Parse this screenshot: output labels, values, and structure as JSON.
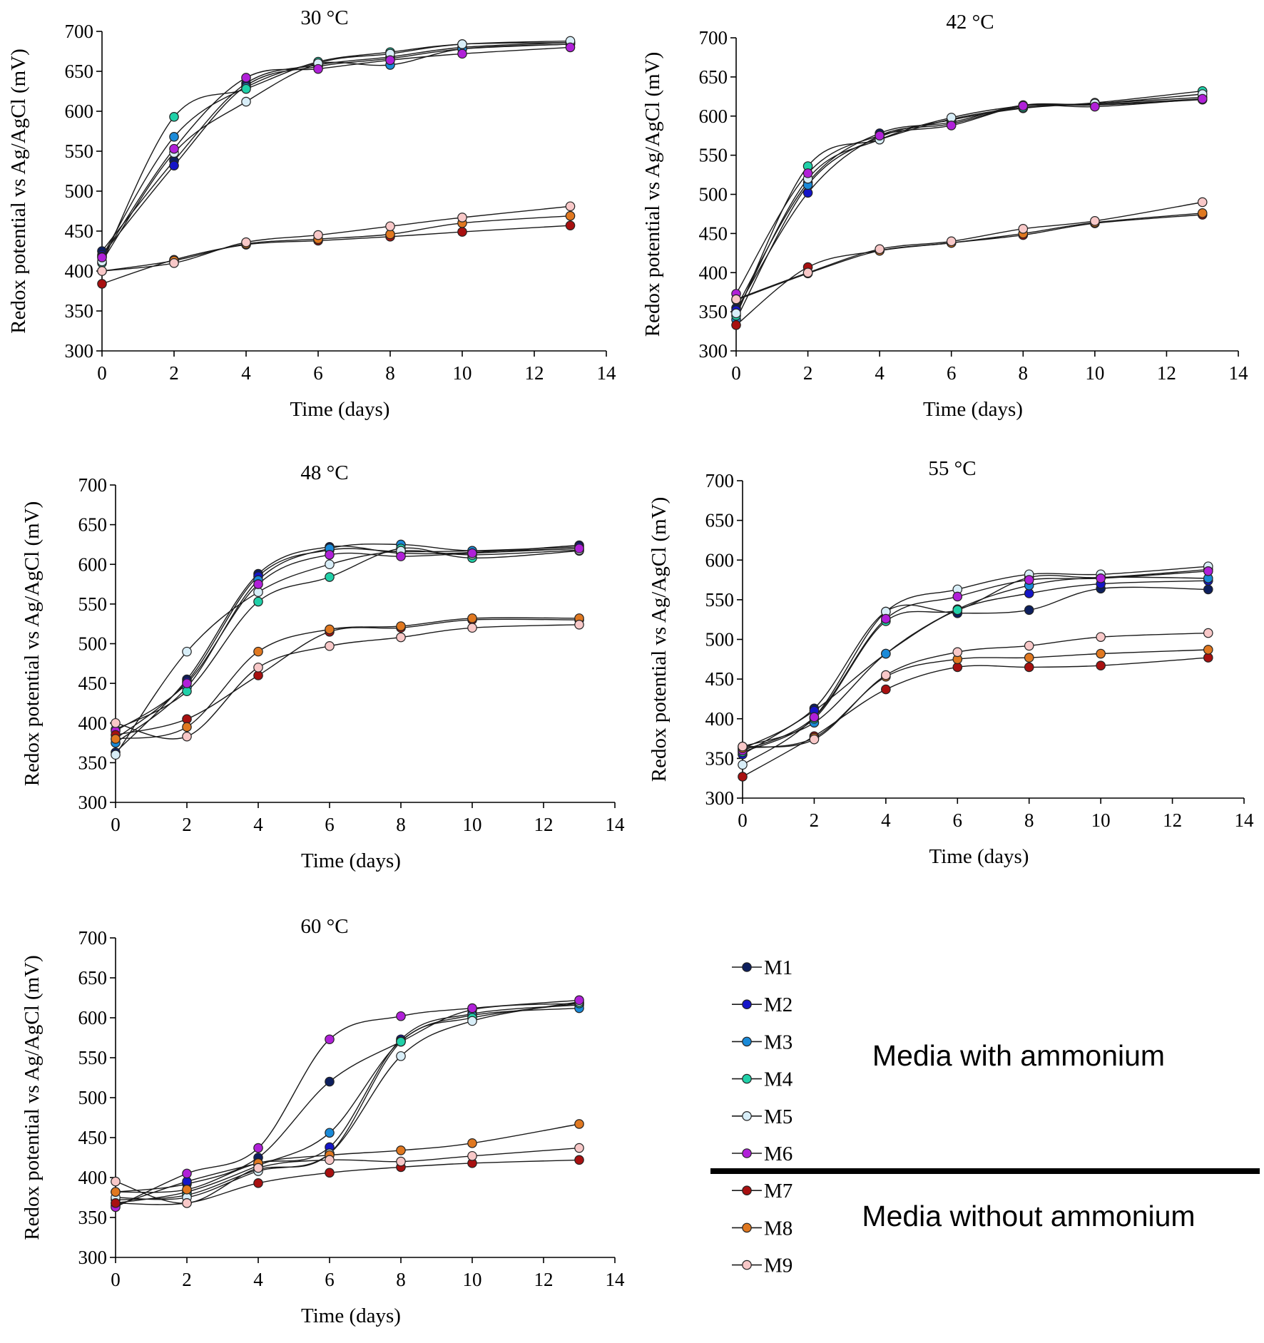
{
  "figure": {
    "legend": {
      "entries": [
        "M1",
        "M2",
        "M3",
        "M4",
        "M5",
        "M6",
        "M7",
        "M8",
        "M9"
      ],
      "group_with": "Media with ammonium",
      "group_without": "Media without ammonium"
    },
    "series_colors": {
      "M1": "#0d1f5e",
      "M2": "#1515c8",
      "M3": "#1a8ad8",
      "M4": "#20d0a8",
      "M5": "#d8eef8",
      "M6": "#b020d8",
      "M7": "#a81010",
      "M8": "#e07820",
      "M9": "#f8c8c8"
    }
  },
  "chart_data": [
    {
      "type": "line",
      "title": "30 °C",
      "xlabel": "Time (days)",
      "ylabel": "Redox potential vs Ag/AgCl (mV)",
      "xlim": [
        0,
        14
      ],
      "ylim": [
        300,
        700
      ],
      "xticks": [
        0,
        2,
        4,
        6,
        8,
        10,
        12,
        14
      ],
      "yticks": [
        300,
        350,
        400,
        450,
        500,
        550,
        600,
        650,
        700
      ],
      "x": [
        0,
        2,
        4,
        6,
        8,
        10,
        13
      ],
      "series": [
        {
          "name": "M1",
          "values": [
            425,
            538,
            635,
            658,
            668,
            680,
            686
          ]
        },
        {
          "name": "M2",
          "values": [
            420,
            532,
            632,
            656,
            666,
            678,
            684
          ]
        },
        {
          "name": "M3",
          "values": [
            418,
            568,
            630,
            660,
            658,
            678,
            684
          ]
        },
        {
          "name": "M4",
          "values": [
            410,
            593,
            628,
            662,
            674,
            684,
            686
          ]
        },
        {
          "name": "M5",
          "values": [
            412,
            548,
            612,
            660,
            672,
            684,
            688
          ]
        },
        {
          "name": "M6",
          "values": [
            417,
            553,
            642,
            653,
            664,
            672,
            680
          ]
        },
        {
          "name": "M7",
          "values": [
            384,
            414,
            433,
            438,
            443,
            449,
            457
          ]
        },
        {
          "name": "M8",
          "values": [
            400,
            413,
            434,
            440,
            446,
            460,
            469
          ]
        },
        {
          "name": "M9",
          "values": [
            400,
            410,
            436,
            445,
            456,
            467,
            481
          ]
        }
      ]
    },
    {
      "type": "line",
      "title": "42 °C",
      "xlabel": "Time (days)",
      "ylabel": "Redox potential vs Ag/AgCl (mV)",
      "xlim": [
        0,
        14
      ],
      "ylim": [
        300,
        700
      ],
      "xticks": [
        0,
        2,
        4,
        6,
        8,
        10,
        12,
        14
      ],
      "yticks": [
        300,
        350,
        400,
        450,
        500,
        550,
        600,
        650,
        700
      ],
      "x": [
        0,
        2,
        4,
        6,
        8,
        10,
        13
      ],
      "series": [
        {
          "name": "M1",
          "values": [
            355,
            515,
            578,
            592,
            614,
            615,
            622
          ]
        },
        {
          "name": "M2",
          "values": [
            352,
            502,
            575,
            590,
            613,
            614,
            621
          ]
        },
        {
          "name": "M3",
          "values": [
            340,
            512,
            573,
            595,
            610,
            616,
            624
          ]
        },
        {
          "name": "M4",
          "values": [
            345,
            536,
            570,
            596,
            611,
            617,
            632
          ]
        },
        {
          "name": "M5",
          "values": [
            348,
            520,
            570,
            598,
            613,
            616,
            628
          ]
        },
        {
          "name": "M6",
          "values": [
            373,
            527,
            575,
            588,
            613,
            612,
            622
          ]
        },
        {
          "name": "M7",
          "values": [
            333,
            407,
            428,
            438,
            448,
            463,
            474
          ]
        },
        {
          "name": "M8",
          "values": [
            365,
            399,
            428,
            438,
            450,
            464,
            476
          ]
        },
        {
          "name": "M9",
          "values": [
            366,
            400,
            430,
            440,
            456,
            466,
            490
          ]
        }
      ]
    },
    {
      "type": "line",
      "title": "48 °C",
      "xlabel": "Time (days)",
      "ylabel": "Redox potential vs Ag/AgCl (mV)",
      "xlim": [
        0,
        14
      ],
      "ylim": [
        300,
        700
      ],
      "xticks": [
        0,
        2,
        4,
        6,
        8,
        10,
        12,
        14
      ],
      "yticks": [
        300,
        350,
        400,
        450,
        500,
        550,
        600,
        650,
        700
      ],
      "x": [
        0,
        2,
        4,
        6,
        8,
        10,
        13
      ],
      "series": [
        {
          "name": "M1",
          "values": [
            363,
            455,
            588,
            622,
            614,
            615,
            624
          ]
        },
        {
          "name": "M2",
          "values": [
            380,
            452,
            585,
            618,
            616,
            617,
            622
          ]
        },
        {
          "name": "M3",
          "values": [
            375,
            445,
            580,
            620,
            625,
            617,
            620
          ]
        },
        {
          "name": "M4",
          "values": [
            392,
            440,
            553,
            584,
            620,
            608,
            617
          ]
        },
        {
          "name": "M5",
          "values": [
            360,
            490,
            565,
            600,
            617,
            612,
            618
          ]
        },
        {
          "name": "M6",
          "values": [
            390,
            450,
            575,
            612,
            610,
            614,
            620
          ]
        },
        {
          "name": "M7",
          "values": [
            385,
            405,
            460,
            515,
            520,
            530,
            530
          ]
        },
        {
          "name": "M8",
          "values": [
            380,
            395,
            490,
            518,
            522,
            532,
            532
          ]
        },
        {
          "name": "M9",
          "values": [
            400,
            383,
            470,
            497,
            508,
            520,
            524
          ]
        }
      ]
    },
    {
      "type": "line",
      "title": "55 °C",
      "xlabel": "Time (days)",
      "ylabel": "Redox potential vs Ag/AgCl (mV)",
      "xlim": [
        0,
        14
      ],
      "ylim": [
        300,
        700
      ],
      "xticks": [
        0,
        2,
        4,
        6,
        8,
        10,
        12,
        14
      ],
      "yticks": [
        300,
        350,
        400,
        450,
        500,
        550,
        600,
        650,
        700
      ],
      "x": [
        0,
        2,
        4,
        6,
        8,
        10,
        13
      ],
      "series": [
        {
          "name": "M1",
          "values": [
            362,
            413,
            535,
            533,
            537,
            564,
            563
          ]
        },
        {
          "name": "M2",
          "values": [
            355,
            410,
            482,
            537,
            558,
            570,
            574
          ]
        },
        {
          "name": "M3",
          "values": [
            365,
            395,
            482,
            538,
            568,
            578,
            577
          ]
        },
        {
          "name": "M4",
          "values": [
            358,
            400,
            523,
            537,
            578,
            578,
            588
          ]
        },
        {
          "name": "M5",
          "values": [
            342,
            402,
            535,
            563,
            582,
            582,
            592
          ]
        },
        {
          "name": "M6",
          "values": [
            360,
            402,
            526,
            554,
            575,
            577,
            586
          ]
        },
        {
          "name": "M7",
          "values": [
            327,
            378,
            437,
            465,
            465,
            467,
            477
          ]
        },
        {
          "name": "M8",
          "values": [
            363,
            376,
            453,
            475,
            477,
            482,
            487
          ]
        },
        {
          "name": "M9",
          "values": [
            365,
            374,
            455,
            484,
            492,
            503,
            508
          ]
        }
      ]
    },
    {
      "type": "line",
      "title": "60 °C",
      "xlabel": "Time (days)",
      "ylabel": "Redox potential vs Ag/AgCl (mV)",
      "xlim": [
        0,
        14
      ],
      "ylim": [
        300,
        700
      ],
      "xticks": [
        0,
        2,
        4,
        6,
        8,
        10,
        12,
        14
      ],
      "yticks": [
        300,
        350,
        400,
        450,
        500,
        550,
        600,
        650,
        700
      ],
      "x": [
        0,
        2,
        4,
        6,
        8,
        10,
        13
      ],
      "series": [
        {
          "name": "M1",
          "values": [
            382,
            392,
            425,
            520,
            570,
            610,
            618
          ]
        },
        {
          "name": "M2",
          "values": [
            365,
            395,
            418,
            438,
            573,
            605,
            616
          ]
        },
        {
          "name": "M3",
          "values": [
            368,
            382,
            415,
            456,
            571,
            603,
            612
          ]
        },
        {
          "name": "M4",
          "values": [
            372,
            378,
            410,
            430,
            570,
            600,
            618
          ]
        },
        {
          "name": "M5",
          "values": [
            375,
            375,
            408,
            430,
            552,
            596,
            620
          ]
        },
        {
          "name": "M6",
          "values": [
            363,
            405,
            437,
            573,
            602,
            612,
            622
          ]
        },
        {
          "name": "M7",
          "values": [
            368,
            368,
            393,
            406,
            413,
            418,
            422
          ]
        },
        {
          "name": "M8",
          "values": [
            382,
            385,
            418,
            428,
            434,
            443,
            467
          ]
        },
        {
          "name": "M9",
          "values": [
            395,
            368,
            412,
            422,
            420,
            427,
            437
          ]
        }
      ]
    }
  ]
}
